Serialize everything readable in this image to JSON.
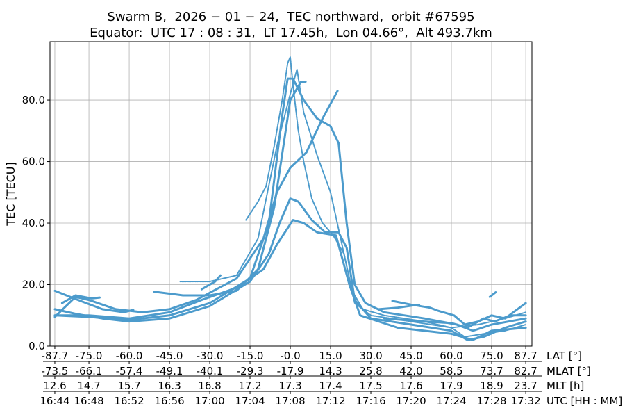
{
  "chart_data": {
    "type": "scatter",
    "title": "Swarm B,  2026 − 01 − 24,  TEC northward,  orbit #67595",
    "subtitle": "Equator:  UTC 17 : 08 : 31,  LT 17.45h,  Lon 04.66°,  Alt 493.7km",
    "ylabel": "TEC [TECU]",
    "xlim": [
      -89.5,
      90.0
    ],
    "ylim": [
      0,
      99
    ],
    "grid": true,
    "color": "#4c9bcc",
    "yticks": [
      0,
      20,
      40,
      60,
      80
    ],
    "ytick_labels": [
      "0.0",
      "20.0",
      "40.0",
      "60.0",
      "80.0"
    ],
    "xtick_positions": [
      -87.7,
      -75,
      -60,
      -45,
      -30,
      -15,
      0,
      15,
      30,
      45,
      60,
      75,
      87.7
    ],
    "x_axes": [
      {
        "label": "LAT [°]",
        "ticks": [
          "-87.7",
          "-75.0",
          "-60.0",
          "-45.0",
          "-30.0",
          "-15.0",
          "-0.0",
          "15.0",
          "30.0",
          "45.0",
          "60.0",
          "75.0",
          "87.7"
        ]
      },
      {
        "label": "MLAT [°]",
        "ticks": [
          "-73.5",
          "-66.1",
          "-57.4",
          "-49.1",
          "-40.1",
          "-29.3",
          "-17.9",
          "14.3",
          "25.8",
          "42.0",
          "58.5",
          "73.7",
          "82.7"
        ]
      },
      {
        "label": "MLT [h]",
        "ticks": [
          "12.6",
          "14.7",
          "15.7",
          "16.3",
          "16.8",
          "17.2",
          "17.3",
          "17.4",
          "17.5",
          "17.6",
          "17.9",
          "18.9",
          "23.7"
        ]
      },
      {
        "label": "UTC [HH : MM]",
        "ticks": [
          "16:44",
          "16:48",
          "16:52",
          "16:56",
          "17:00",
          "17:04",
          "17:08",
          "17:12",
          "17:16",
          "17:20",
          "17:24",
          "17:28",
          "17:32"
        ]
      }
    ],
    "series": [
      {
        "style": "solid",
        "points": [
          [
            -87.7,
            10
          ],
          [
            -75,
            9.5
          ],
          [
            -60,
            8.5
          ],
          [
            -45,
            10
          ],
          [
            -30,
            14
          ],
          [
            -15,
            22
          ],
          [
            -8,
            40
          ],
          [
            -3,
            75
          ],
          [
            -1,
            87
          ],
          [
            1,
            87
          ],
          [
            5,
            80
          ],
          [
            10,
            74
          ],
          [
            15,
            71.5
          ],
          [
            18,
            66
          ],
          [
            21,
            40
          ],
          [
            24,
            20
          ],
          [
            28,
            14
          ],
          [
            35,
            11
          ],
          [
            50,
            9
          ],
          [
            62,
            7
          ],
          [
            68,
            5
          ],
          [
            75,
            7
          ],
          [
            87.7,
            9
          ]
        ]
      },
      {
        "style": "dotted",
        "points": [
          [
            -16.5,
            41
          ],
          [
            -12,
            47
          ],
          [
            -9,
            52
          ],
          [
            -6,
            65
          ],
          [
            -3,
            80
          ],
          [
            -1,
            92
          ],
          [
            0,
            94
          ],
          [
            1,
            85
          ],
          [
            3,
            70
          ],
          [
            5,
            60
          ],
          [
            8,
            48
          ],
          [
            12,
            40
          ],
          [
            16,
            36
          ],
          [
            20,
            30
          ],
          [
            23,
            18
          ],
          [
            27,
            12
          ],
          [
            35,
            10
          ],
          [
            50,
            8
          ],
          [
            60,
            6
          ],
          [
            65,
            3
          ],
          [
            72,
            4
          ],
          [
            80,
            5
          ],
          [
            87.7,
            7
          ]
        ]
      },
      {
        "style": "solid",
        "points": [
          [
            -87.7,
            12
          ],
          [
            -80,
            10.5
          ],
          [
            -70,
            9
          ],
          [
            -60,
            8
          ],
          [
            -45,
            9
          ],
          [
            -30,
            13
          ],
          [
            -15,
            21
          ],
          [
            -8,
            30
          ],
          [
            -4,
            40
          ],
          [
            0,
            48
          ],
          [
            3,
            47
          ],
          [
            8,
            41
          ],
          [
            13,
            37
          ],
          [
            18,
            37
          ],
          [
            21,
            32
          ],
          [
            24,
            15
          ],
          [
            30,
            9
          ],
          [
            45,
            7
          ],
          [
            60,
            5
          ],
          [
            66,
            2
          ],
          [
            72,
            3
          ],
          [
            80,
            6
          ],
          [
            87.7,
            8
          ]
        ]
      },
      {
        "style": "solid",
        "points": [
          [
            -87.7,
            10
          ],
          [
            -75,
            10
          ],
          [
            -60,
            9
          ],
          [
            -45,
            11
          ],
          [
            -33,
            15
          ],
          [
            -20,
            19
          ],
          [
            -10,
            25
          ],
          [
            -5,
            33
          ],
          [
            1,
            41
          ],
          [
            5,
            40
          ],
          [
            10,
            37
          ],
          [
            17,
            36
          ],
          [
            22,
            20
          ],
          [
            26,
            10
          ],
          [
            40,
            6
          ],
          [
            60,
            4
          ],
          [
            68,
            2
          ],
          [
            75,
            5
          ],
          [
            87.7,
            6
          ]
        ]
      },
      {
        "style": "solid",
        "points": [
          [
            -87.7,
            9.5
          ],
          [
            -80,
            16
          ],
          [
            -75,
            15
          ],
          [
            -65,
            12
          ],
          [
            -55,
            11
          ],
          [
            -45,
            12
          ],
          [
            -35,
            15
          ],
          [
            -20,
            22
          ],
          [
            -10,
            35
          ],
          [
            -5,
            50
          ],
          [
            0,
            58
          ],
          [
            6,
            63
          ],
          [
            12,
            74
          ],
          [
            17.6,
            83
          ]
        ]
      },
      {
        "style": "dotted",
        "points": [
          [
            -41,
            21
          ],
          [
            -30,
            21
          ],
          [
            -20,
            23
          ],
          [
            -12,
            35
          ],
          [
            -5,
            65
          ],
          [
            0,
            82
          ],
          [
            2.5,
            90
          ],
          [
            5,
            76
          ],
          [
            10,
            62
          ],
          [
            15,
            50
          ],
          [
            20,
            30
          ],
          [
            24,
            14
          ],
          [
            30,
            10
          ],
          [
            45,
            8
          ],
          [
            60,
            6
          ],
          [
            70,
            7
          ],
          [
            80,
            9
          ],
          [
            87.7,
            11
          ]
        ]
      },
      {
        "style": "solid",
        "points": [
          [
            -50.7,
            17.7
          ],
          [
            -40,
            16.5
          ],
          [
            -30,
            16.5
          ],
          [
            -20,
            18
          ],
          [
            -12,
            25
          ],
          [
            -6,
            45
          ],
          [
            0,
            80
          ],
          [
            4,
            86
          ],
          [
            5.7,
            86
          ]
        ]
      },
      {
        "style": "solid",
        "points": [
          [
            -87.7,
            18
          ],
          [
            -82,
            16
          ],
          [
            -76,
            14
          ],
          [
            -70,
            12
          ],
          [
            -62,
            11
          ],
          [
            -58.5,
            11.8
          ]
        ]
      },
      {
        "style": "solid",
        "points": [
          [
            -85,
            14
          ],
          [
            -80,
            16.5
          ],
          [
            -74,
            15.5
          ],
          [
            -71,
            15.8
          ]
        ]
      },
      {
        "style": "solid",
        "points": [
          [
            -33,
            18.5
          ],
          [
            -28,
            21
          ],
          [
            -26,
            23
          ]
        ]
      },
      {
        "style": "solid",
        "points": [
          [
            38,
            14.7
          ],
          [
            45,
            13.5
          ],
          [
            52,
            12.5
          ],
          [
            55,
            11.5
          ],
          [
            61,
            10
          ],
          [
            65,
            7
          ],
          [
            70,
            8
          ],
          [
            75,
            10
          ],
          [
            80,
            9
          ],
          [
            87.7,
            14
          ]
        ]
      },
      {
        "style": "solid",
        "points": [
          [
            33,
            12
          ],
          [
            40,
            12.5
          ],
          [
            48,
            13.5
          ]
        ]
      },
      {
        "style": "solid",
        "points": [
          [
            35,
            9
          ],
          [
            50,
            8
          ],
          [
            60,
            7.5
          ],
          [
            66,
            6
          ],
          [
            72,
            9
          ],
          [
            76,
            8
          ],
          [
            82,
            10
          ],
          [
            87.7,
            10
          ]
        ]
      },
      {
        "style": "solid",
        "points": [
          [
            74.3,
            16
          ],
          [
            76.5,
            17.5
          ]
        ]
      }
    ]
  }
}
